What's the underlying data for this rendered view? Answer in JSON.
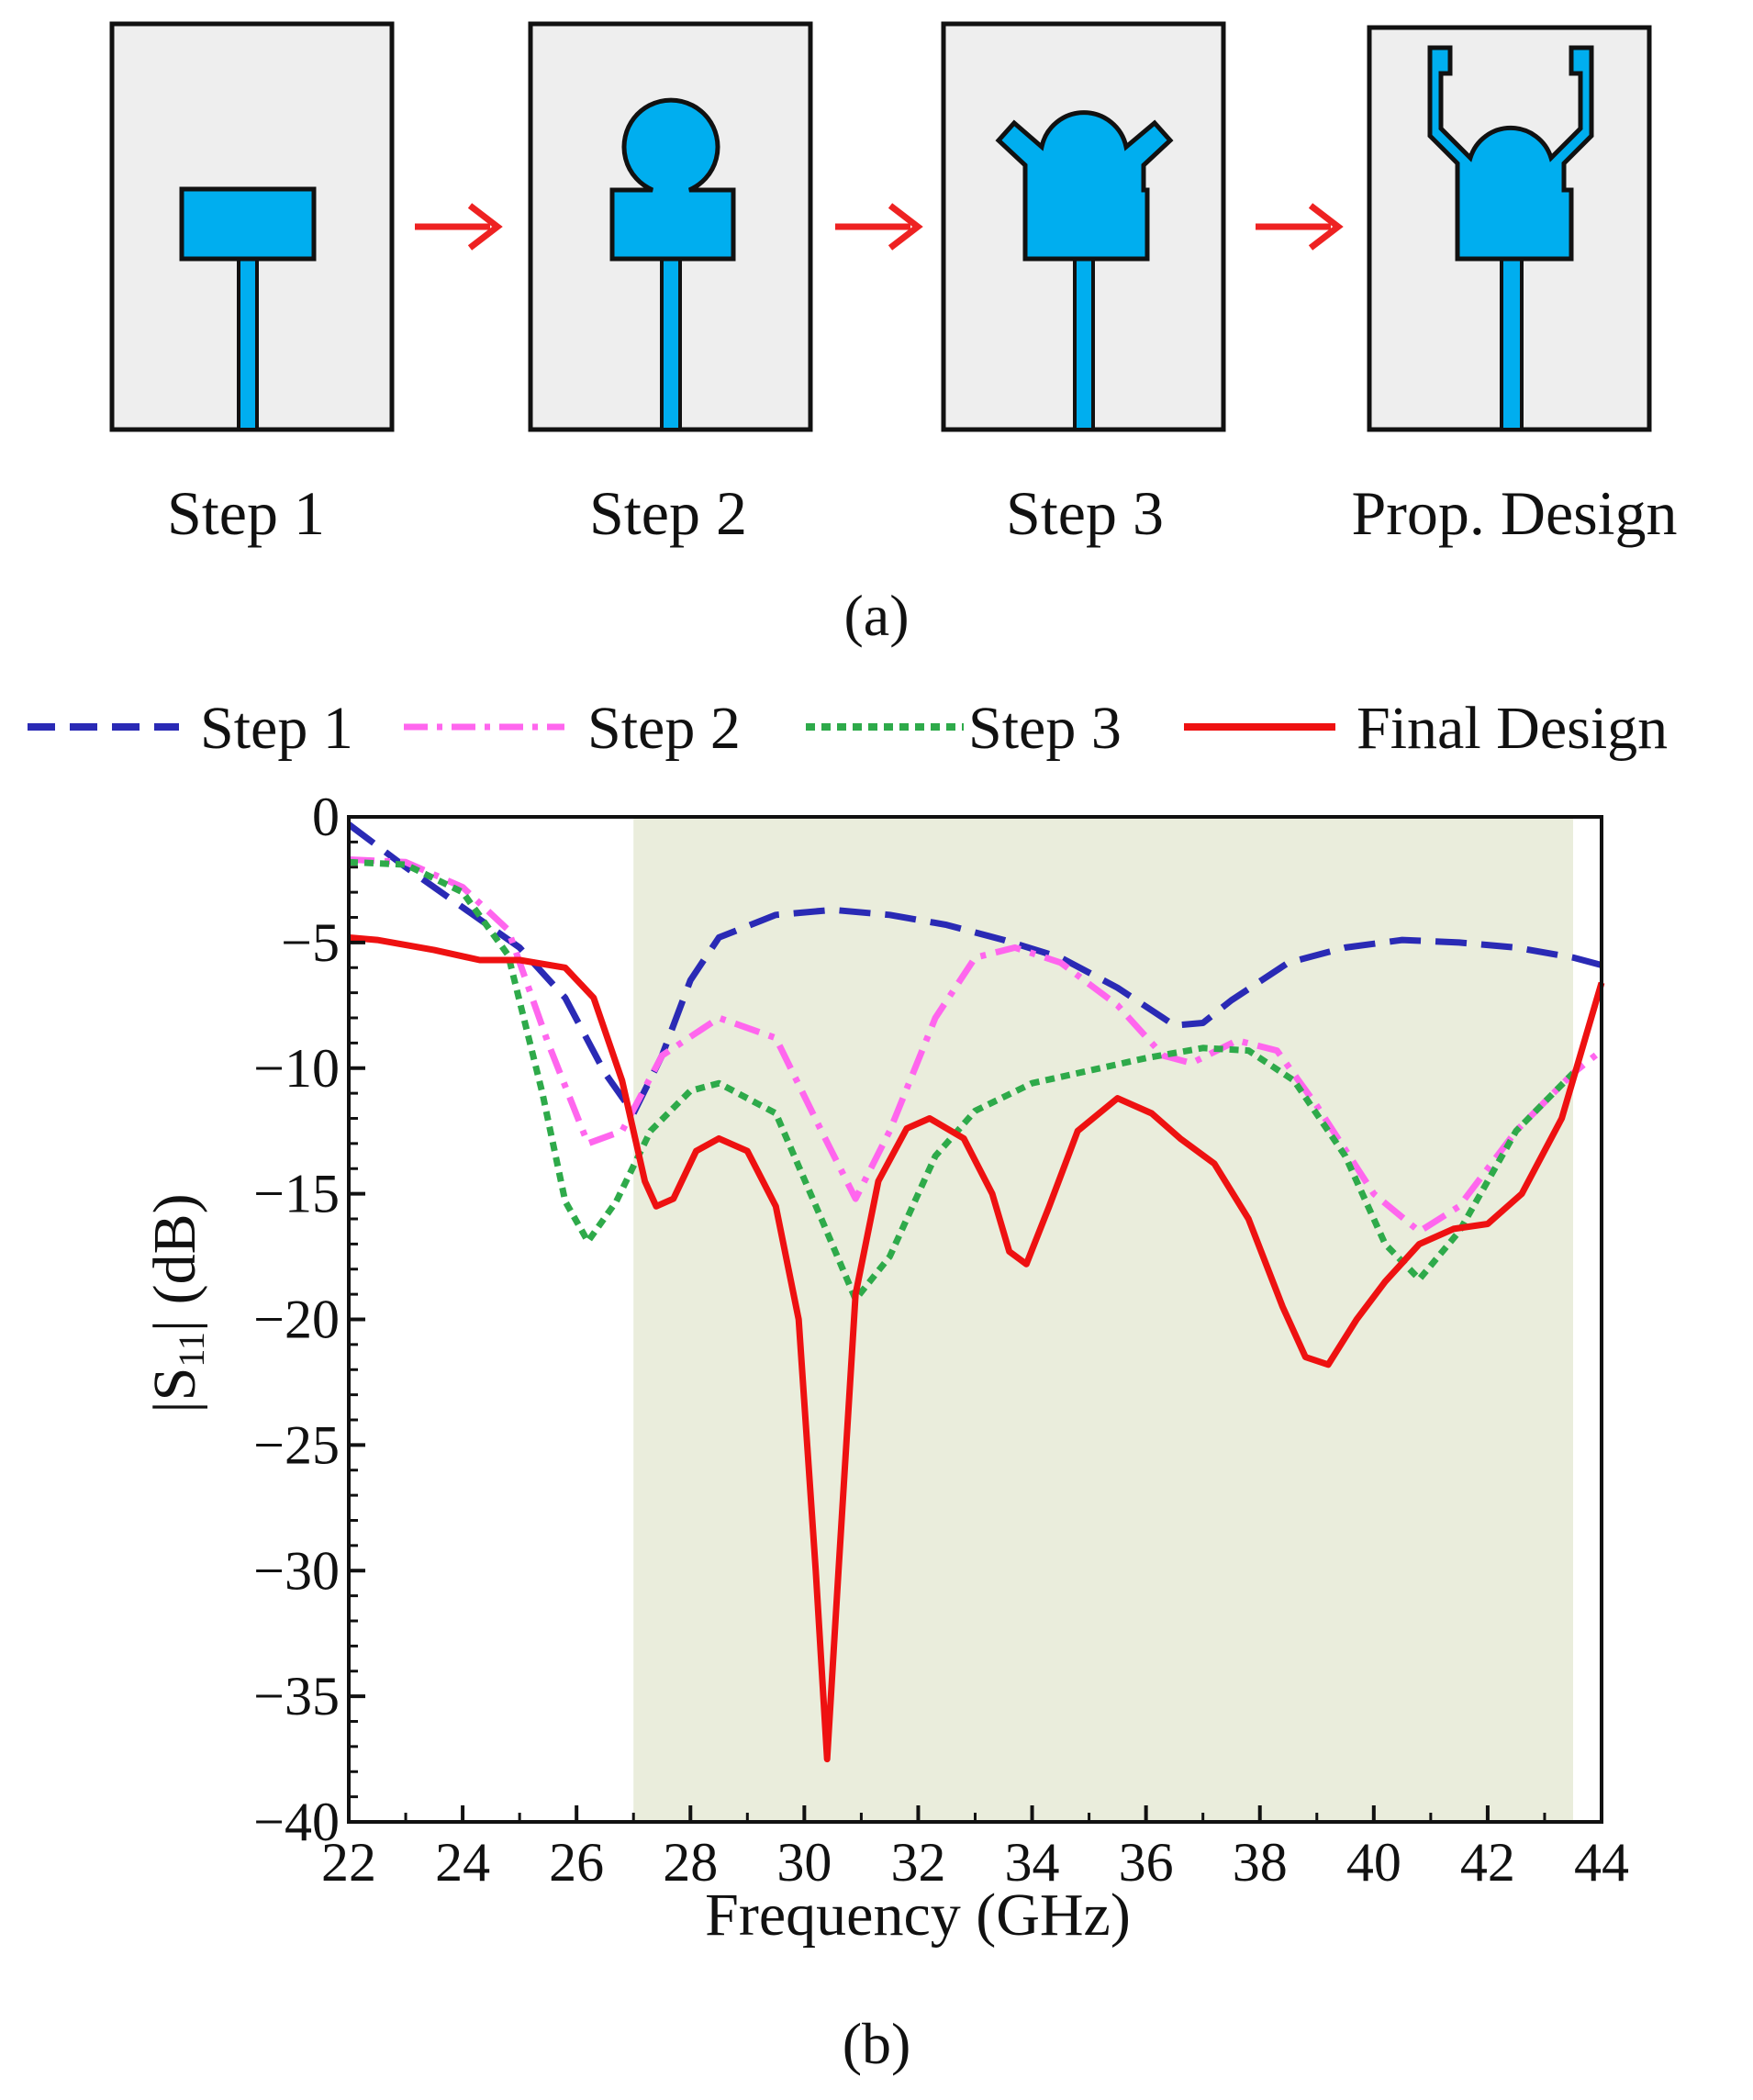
{
  "colors": {
    "substrate": "#eeeeee",
    "patch": "#00aeef",
    "arrow": "#ee2222",
    "band_shade": "#eaeddc"
  },
  "panel_a": {
    "steps": [
      {
        "label": "Step 1",
        "shape": "rect-patch"
      },
      {
        "label": "Step 2",
        "shape": "circle-patch"
      },
      {
        "label": "Step 3",
        "shape": "arms-patch"
      },
      {
        "label": "Prop. Design",
        "shape": "u-arms-patch"
      }
    ],
    "caption": "(a)"
  },
  "panel_b": {
    "caption": "(b)"
  },
  "chart_data": {
    "type": "line",
    "title": "",
    "xlabel": "Frequency (GHz)",
    "ylabel_main": "|S",
    "ylabel_sub": "11",
    "ylabel_tail": "| (dB)",
    "xlim": [
      22,
      44
    ],
    "ylim": [
      -40,
      0
    ],
    "xticks": [
      "22",
      "24",
      "26",
      "28",
      "30",
      "32",
      "34",
      "36",
      "38",
      "40",
      "42",
      "44"
    ],
    "yticks": [
      "0",
      "−5",
      "−10",
      "−15",
      "−20",
      "−25",
      "−30",
      "−35",
      "−40"
    ],
    "legend_position": "top",
    "shaded_band": [
      27,
      43.5
    ],
    "series": [
      {
        "name": "Step 1",
        "color": "#2a2ab5",
        "style": "dashed",
        "points": [
          [
            22,
            -0.3
          ],
          [
            23,
            -2
          ],
          [
            24,
            -3.6
          ],
          [
            25,
            -5.2
          ],
          [
            25.8,
            -7.2
          ],
          [
            26.5,
            -10.2
          ],
          [
            27,
            -11.8
          ],
          [
            27.5,
            -9.5
          ],
          [
            28,
            -6.5
          ],
          [
            28.5,
            -4.8
          ],
          [
            29.5,
            -3.9
          ],
          [
            30.5,
            -3.7
          ],
          [
            31.5,
            -3.9
          ],
          [
            32.5,
            -4.3
          ],
          [
            33.5,
            -4.9
          ],
          [
            34.5,
            -5.6
          ],
          [
            35.5,
            -6.8
          ],
          [
            36.5,
            -8.3
          ],
          [
            37,
            -8.2
          ],
          [
            37.5,
            -7.3
          ],
          [
            38.5,
            -5.8
          ],
          [
            39.5,
            -5.2
          ],
          [
            40.5,
            -4.9
          ],
          [
            41.5,
            -5
          ],
          [
            42.5,
            -5.2
          ],
          [
            43.5,
            -5.6
          ],
          [
            44,
            -5.9
          ]
        ]
      },
      {
        "name": "Step 2",
        "color": "#ff66ee",
        "style": "dashdot",
        "points": [
          [
            22,
            -1.7
          ],
          [
            23,
            -1.8
          ],
          [
            24,
            -2.8
          ],
          [
            24.8,
            -4.5
          ],
          [
            25.5,
            -9
          ],
          [
            26.2,
            -13
          ],
          [
            26.8,
            -12.5
          ],
          [
            27.5,
            -9.5
          ],
          [
            28.5,
            -8
          ],
          [
            29.5,
            -8.8
          ],
          [
            30.3,
            -12.5
          ],
          [
            30.9,
            -15.2
          ],
          [
            31.5,
            -12.5
          ],
          [
            32.3,
            -8
          ],
          [
            33,
            -5.6
          ],
          [
            33.7,
            -5.2
          ],
          [
            34.5,
            -5.8
          ],
          [
            35.5,
            -7.5
          ],
          [
            36.3,
            -9.5
          ],
          [
            36.8,
            -9.8
          ],
          [
            37.6,
            -8.9
          ],
          [
            38.3,
            -9.3
          ],
          [
            39,
            -11.5
          ],
          [
            40,
            -15
          ],
          [
            40.8,
            -16.5
          ],
          [
            41.5,
            -15.5
          ],
          [
            42.5,
            -12.5
          ],
          [
            43.5,
            -10.2
          ],
          [
            44,
            -9.3
          ]
        ]
      },
      {
        "name": "Step 3",
        "color": "#2eaa4a",
        "style": "dotted",
        "points": [
          [
            22,
            -1.8
          ],
          [
            23,
            -1.9
          ],
          [
            24,
            -3
          ],
          [
            24.8,
            -5.5
          ],
          [
            25.4,
            -11
          ],
          [
            25.8,
            -15.3
          ],
          [
            26.2,
            -16.9
          ],
          [
            26.7,
            -15.3
          ],
          [
            27.3,
            -12.5
          ],
          [
            28,
            -10.9
          ],
          [
            28.5,
            -10.6
          ],
          [
            29.5,
            -11.8
          ],
          [
            30.3,
            -16
          ],
          [
            30.9,
            -19.2
          ],
          [
            31.5,
            -17.5
          ],
          [
            32.3,
            -13.5
          ],
          [
            33,
            -11.7
          ],
          [
            34,
            -10.6
          ],
          [
            35,
            -10.1
          ],
          [
            36,
            -9.6
          ],
          [
            37,
            -9.2
          ],
          [
            37.8,
            -9.3
          ],
          [
            38.6,
            -10.5
          ],
          [
            39.5,
            -13.5
          ],
          [
            40.2,
            -17
          ],
          [
            40.8,
            -18.4
          ],
          [
            41.5,
            -16.5
          ],
          [
            42.5,
            -12.5
          ],
          [
            43.5,
            -10.2
          ]
        ]
      },
      {
        "name": "Final Design",
        "color": "#ee1111",
        "style": "solid",
        "points": [
          [
            22,
            -4.8
          ],
          [
            22.5,
            -4.9
          ],
          [
            23.5,
            -5.3
          ],
          [
            24.3,
            -5.7
          ],
          [
            25,
            -5.7
          ],
          [
            25.8,
            -6
          ],
          [
            26.3,
            -7.2
          ],
          [
            26.8,
            -10.5
          ],
          [
            27.2,
            -14.5
          ],
          [
            27.4,
            -15.5
          ],
          [
            27.7,
            -15.2
          ],
          [
            28.1,
            -13.3
          ],
          [
            28.5,
            -12.8
          ],
          [
            29,
            -13.3
          ],
          [
            29.5,
            -15.5
          ],
          [
            29.9,
            -20
          ],
          [
            30.2,
            -30
          ],
          [
            30.4,
            -37.5
          ],
          [
            30.6,
            -30
          ],
          [
            30.9,
            -19
          ],
          [
            31.3,
            -14.5
          ],
          [
            31.8,
            -12.4
          ],
          [
            32.2,
            -12
          ],
          [
            32.8,
            -12.8
          ],
          [
            33.3,
            -15
          ],
          [
            33.6,
            -17.3
          ],
          [
            33.9,
            -17.8
          ],
          [
            34.3,
            -15.5
          ],
          [
            34.8,
            -12.5
          ],
          [
            35.5,
            -11.2
          ],
          [
            36.1,
            -11.8
          ],
          [
            36.6,
            -12.8
          ],
          [
            37.2,
            -13.8
          ],
          [
            37.8,
            -16
          ],
          [
            38.4,
            -19.5
          ],
          [
            38.8,
            -21.5
          ],
          [
            39.2,
            -21.8
          ],
          [
            39.7,
            -20
          ],
          [
            40.2,
            -18.5
          ],
          [
            40.8,
            -17
          ],
          [
            41.4,
            -16.4
          ],
          [
            42,
            -16.2
          ],
          [
            42.6,
            -15
          ],
          [
            43.3,
            -12
          ],
          [
            44,
            -6.6
          ]
        ]
      }
    ]
  }
}
